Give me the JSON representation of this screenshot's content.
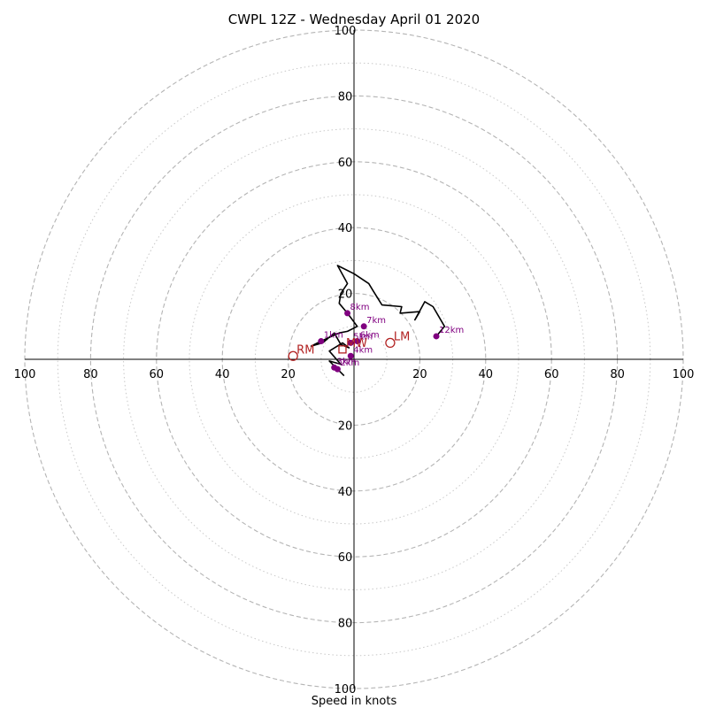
{
  "chart_data": {
    "type": "hodograph",
    "title": "CWPL 12Z - Wednesday April 01 2020",
    "xlabel": "Speed in knots",
    "range_max": 100,
    "ring_step": 20,
    "minor_ring_step": 10,
    "tick_labels": [
      "100",
      "80",
      "60",
      "40",
      "20",
      "20",
      "40",
      "60",
      "80",
      "100"
    ],
    "trace_color": "#000000",
    "marker_color": "#800080",
    "storm_color": "#b22222",
    "trace": [
      [
        -3.0,
        -5.0
      ],
      [
        -5.5,
        -2.5
      ],
      [
        -7.5,
        -0.5
      ],
      [
        -4.0,
        -1.5
      ],
      [
        -7.5,
        2.5
      ],
      [
        -3.5,
        5.0
      ],
      [
        -1.5,
        3.5
      ],
      [
        -4.0,
        4.5
      ],
      [
        -6.0,
        8.0
      ],
      [
        -9.5,
        5.0
      ],
      [
        -13.0,
        4.0
      ],
      [
        -10.0,
        5.5
      ],
      [
        -4.5,
        8.0
      ],
      [
        -2.0,
        8.5
      ],
      [
        1.0,
        10.0
      ],
      [
        -2.0,
        14.0
      ],
      [
        -4.5,
        17.0
      ],
      [
        -4.0,
        20.0
      ],
      [
        -2.0,
        23.0
      ],
      [
        -5.0,
        28.5
      ],
      [
        0.0,
        26.0
      ],
      [
        4.5,
        23.0
      ],
      [
        6.0,
        20.5
      ],
      [
        8.5,
        16.5
      ],
      [
        14.5,
        16.0
      ],
      [
        14.0,
        14.0
      ],
      [
        20.0,
        14.5
      ],
      [
        18.5,
        12.0
      ],
      [
        21.5,
        17.5
      ],
      [
        24.0,
        16.0
      ],
      [
        27.5,
        10.0
      ],
      [
        25.0,
        7.0
      ]
    ],
    "height_markers": [
      {
        "label": "1km",
        "u": -10.0,
        "v": 5.5
      },
      {
        "label": "2km",
        "u": -5.0,
        "v": -3.0
      },
      {
        "label": "3km",
        "u": -6.0,
        "v": -2.5
      },
      {
        "label": "4km",
        "u": -1.0,
        "v": 1.0
      },
      {
        "label": "5km",
        "u": -1.0,
        "v": 5.0
      },
      {
        "label": "6km",
        "u": 1.0,
        "v": 5.5
      },
      {
        "label": "7km",
        "u": 3.0,
        "v": 10.0
      },
      {
        "label": "8km",
        "u": -2.0,
        "v": 14.0
      },
      {
        "label": "12km",
        "u": 25.0,
        "v": 7.0
      }
    ],
    "storm_motion": [
      {
        "label": "RM",
        "u": -18.5,
        "v": 1.0
      },
      {
        "label": "LM",
        "u": 11.0,
        "v": 5.0
      },
      {
        "label": "MW",
        "u": -3.5,
        "v": 3.0
      }
    ]
  }
}
